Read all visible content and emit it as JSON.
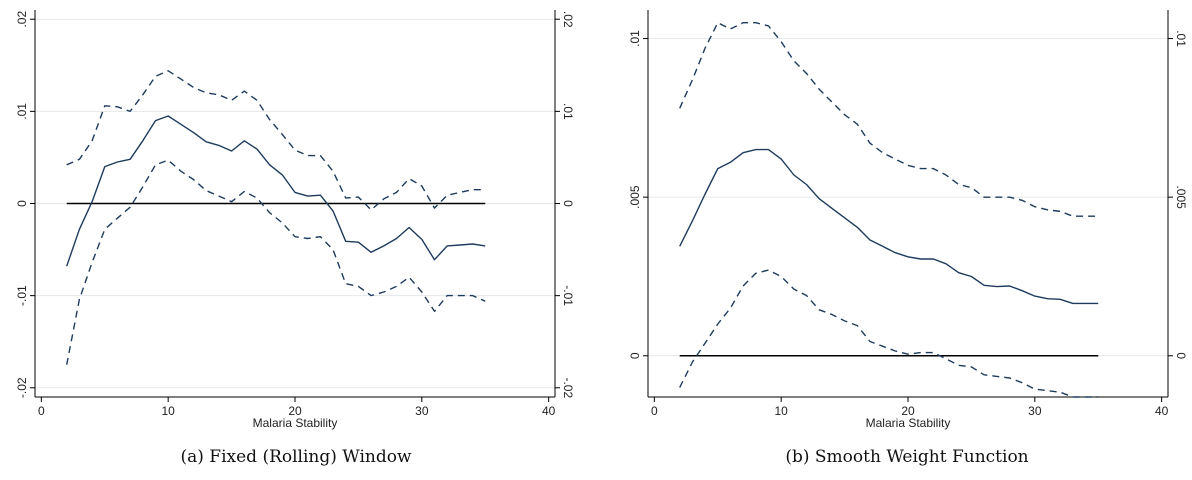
{
  "chart_data": [
    {
      "type": "line",
      "caption": "(a) Fixed (Rolling) Window",
      "xlabel": "Malaria Stability",
      "xlim": [
        -0.5,
        40.5
      ],
      "ylim": [
        -0.021,
        0.021
      ],
      "xticks": [
        0,
        10,
        20,
        30,
        40
      ],
      "xtick_labels": [
        "0",
        "10",
        "20",
        "30",
        "40"
      ],
      "yticks": [
        -0.02,
        -0.01,
        0,
        0.01,
        0.02
      ],
      "ytick_labels": [
        "-.02",
        "-.01",
        "0",
        ".01",
        ".02"
      ],
      "grid": true,
      "mirror_right_axis": true,
      "colors": {
        "estimate": "#1f3b5c",
        "band": "#1f3b5c",
        "zero": "#000000",
        "grid": "#e4e8ec"
      },
      "zero_line": {
        "x": [
          2,
          35
        ],
        "y": 0
      },
      "x": [
        2,
        3,
        4,
        5,
        6,
        7,
        8,
        9,
        10,
        11,
        12,
        13,
        14,
        15,
        16,
        17,
        18,
        19,
        20,
        21,
        22,
        23,
        24,
        25,
        26,
        27,
        28,
        29,
        30,
        31,
        32,
        33,
        34,
        35
      ],
      "series": [
        {
          "style": "solid",
          "values": [
            -0.0068,
            -0.0028,
            0.0002,
            0.004,
            0.0045,
            0.0048,
            0.0068,
            0.009,
            0.0095,
            0.0086,
            0.0077,
            0.0067,
            0.0063,
            0.0057,
            0.0068,
            0.0059,
            0.0042,
            0.0031,
            0.0012,
            0.0008,
            0.0009,
            -0.0008,
            -0.0041,
            -0.0042,
            -0.0053,
            -0.0046,
            -0.0038,
            -0.0026,
            -0.0039,
            -0.0061,
            -0.0046,
            -0.0045,
            -0.0044,
            -0.0046
          ]
        },
        {
          "style": "dashed",
          "values": [
            0.0042,
            0.0048,
            0.0068,
            0.0106,
            0.0105,
            0.01,
            0.0118,
            0.0138,
            0.0144,
            0.0135,
            0.0126,
            0.012,
            0.0118,
            0.0112,
            0.0122,
            0.0112,
            0.0091,
            0.0075,
            0.0058,
            0.0052,
            0.0052,
            0.0035,
            0.0006,
            0.0007,
            -0.0007,
            0.0005,
            0.0012,
            0.0027,
            0.0019,
            -0.0005,
            0.0009,
            0.0012,
            0.0015,
            0.0015
          ]
        },
        {
          "style": "dashed",
          "values": [
            -0.0175,
            -0.0104,
            -0.0064,
            -0.0028,
            -0.0016,
            -0.0004,
            0.0018,
            0.0042,
            0.0047,
            0.0035,
            0.0026,
            0.0014,
            0.0008,
            0.0002,
            0.0013,
            0.0006,
            -0.001,
            -0.0021,
            -0.0036,
            -0.0038,
            -0.0036,
            -0.005,
            -0.0087,
            -0.009,
            -0.01,
            -0.0096,
            -0.009,
            -0.008,
            -0.0096,
            -0.0117,
            -0.01,
            -0.01,
            -0.01,
            -0.0106
          ]
        }
      ]
    },
    {
      "type": "line",
      "caption": "(b) Smooth Weight Function",
      "xlabel": "Malaria Stability",
      "xlim": [
        -0.5,
        40.5
      ],
      "ylim": [
        -0.0013,
        0.0109
      ],
      "xticks": [
        0,
        10,
        20,
        30,
        40
      ],
      "xtick_labels": [
        "0",
        "10",
        "20",
        "30",
        "40"
      ],
      "yticks": [
        0,
        0.005,
        0.01
      ],
      "ytick_labels": [
        "0",
        ".005",
        ".01"
      ],
      "grid": true,
      "mirror_right_axis": true,
      "colors": {
        "estimate": "#1f3b5c",
        "band": "#1f3b5c",
        "zero": "#000000",
        "grid": "#e4e8ec"
      },
      "zero_line": {
        "x": [
          2,
          35
        ],
        "y": 0
      },
      "x": [
        2,
        3,
        4,
        5,
        6,
        7,
        8,
        9,
        10,
        11,
        12,
        13,
        14,
        15,
        16,
        17,
        18,
        19,
        20,
        21,
        22,
        23,
        24,
        25,
        26,
        27,
        28,
        29,
        30,
        31,
        32,
        33,
        34,
        35
      ],
      "series": [
        {
          "style": "solid",
          "values": [
            0.00345,
            0.00425,
            0.0051,
            0.0059,
            0.0061,
            0.0064,
            0.0065,
            0.0065,
            0.0062,
            0.0057,
            0.0054,
            0.00495,
            0.00465,
            0.00435,
            0.00405,
            0.00365,
            0.00345,
            0.00325,
            0.00312,
            0.00305,
            0.00305,
            0.0029,
            0.00262,
            0.0025,
            0.00222,
            0.00218,
            0.0022,
            0.00205,
            0.00188,
            0.0018,
            0.00178,
            0.00165,
            0.00165,
            0.00165
          ]
        },
        {
          "style": "dashed",
          "values": [
            0.0078,
            0.0087,
            0.0097,
            0.0105,
            0.0103,
            0.0105,
            0.0105,
            0.0104,
            0.0099,
            0.0093,
            0.0089,
            0.0084,
            0.008,
            0.0076,
            0.0073,
            0.0067,
            0.0064,
            0.0062,
            0.006,
            0.0059,
            0.0059,
            0.0057,
            0.0054,
            0.0053,
            0.005,
            0.005,
            0.005,
            0.0049,
            0.0047,
            0.0046,
            0.00455,
            0.0044,
            0.0044,
            0.0044
          ]
        },
        {
          "style": "dashed",
          "values": [
            -0.001,
            -0.0002,
            0.0004,
            0.001,
            0.0015,
            0.0022,
            0.0026,
            0.0027,
            0.0025,
            0.0021,
            0.0019,
            0.00145,
            0.0013,
            0.0011,
            0.00095,
            0.00045,
            0.0003,
            0.00015,
            5e-05,
            0.0001,
            0.0001,
            -0.0001,
            -0.0003,
            -0.00035,
            -0.0006,
            -0.00065,
            -0.0007,
            -0.00085,
            -0.00105,
            -0.0011,
            -0.00115,
            -0.0013,
            -0.0013,
            -0.0013
          ]
        }
      ]
    }
  ]
}
